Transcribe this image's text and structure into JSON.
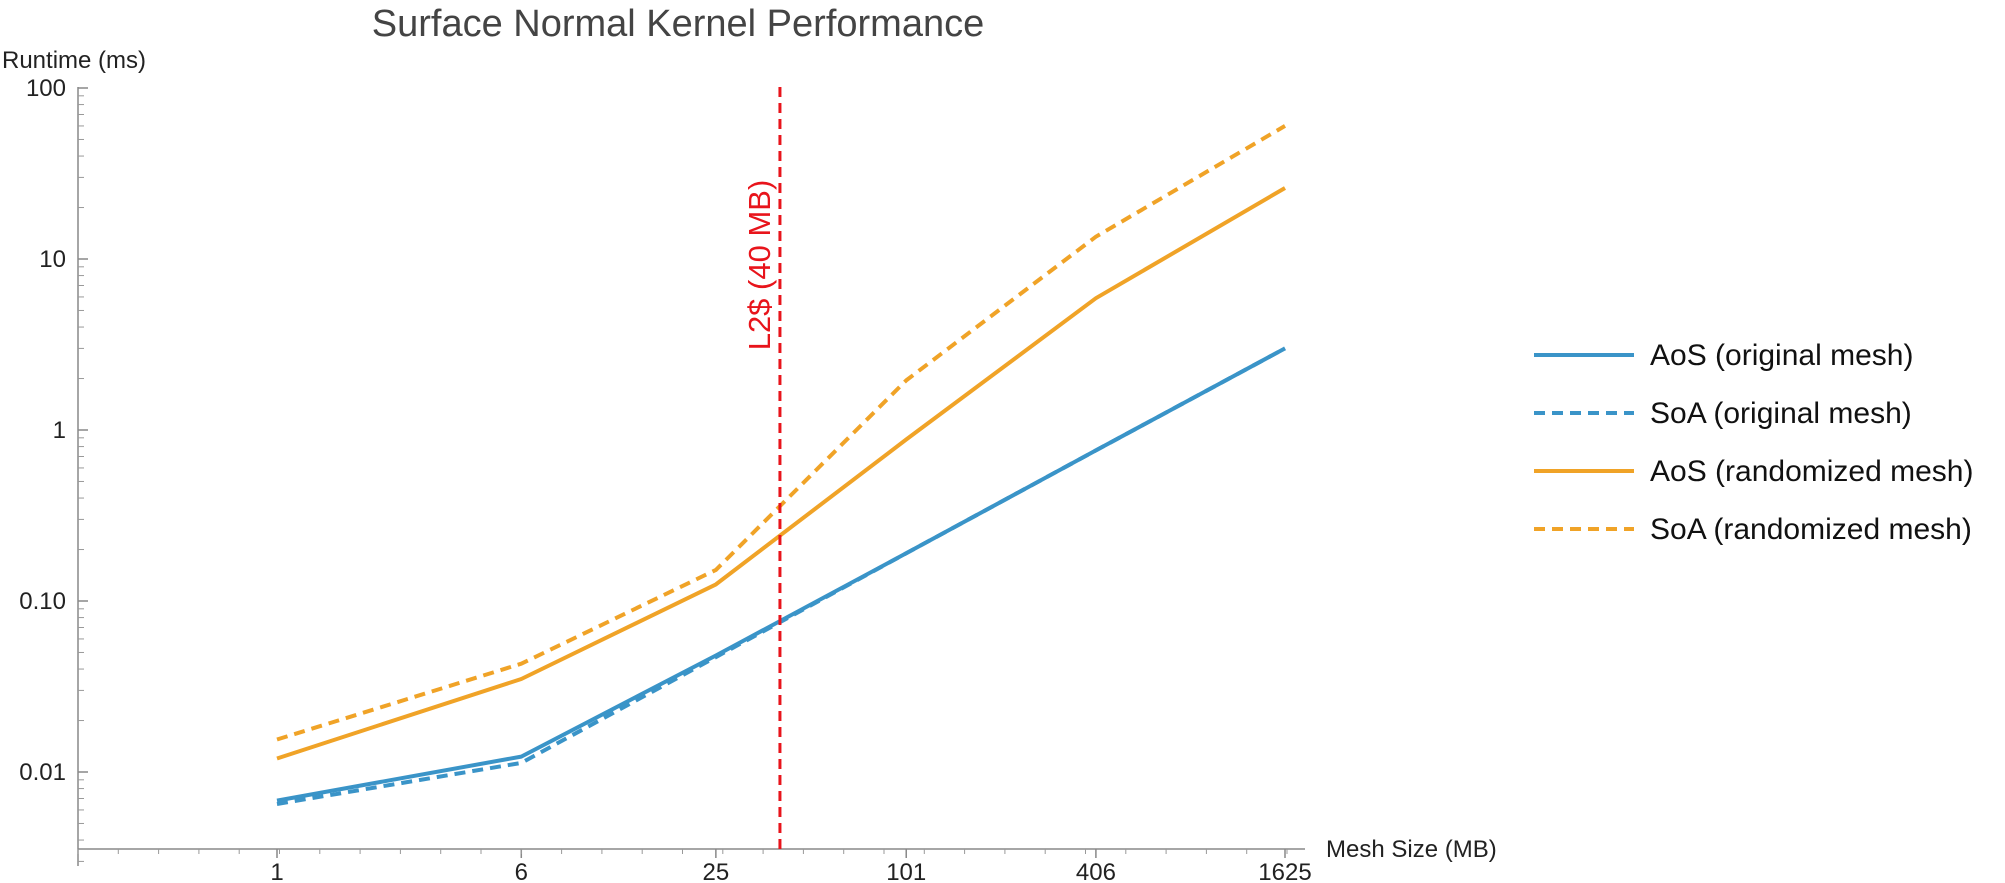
{
  "chart_data": {
    "type": "line",
    "title": "Surface Normal Kernel Performance",
    "xlabel": "Mesh Size (MB)",
    "ylabel": "Runtime (ms)",
    "x_scale": "log",
    "y_scale": "log",
    "categories": [
      "1",
      "6",
      "25",
      "101",
      "406",
      "1625"
    ],
    "x": [
      1,
      6,
      25,
      101,
      406,
      1625
    ],
    "y_ticks": [
      {
        "value": 0.01,
        "label": "0.01"
      },
      {
        "value": 0.1,
        "label": "0.10"
      },
      {
        "value": 1,
        "label": "1"
      },
      {
        "value": 10,
        "label": "10"
      },
      {
        "value": 100,
        "label": "100"
      }
    ],
    "ylim": [
      0.0037,
      100
    ],
    "series": [
      {
        "name": "AoS (original mesh)",
        "color": "#3a94c8",
        "dash": "solid",
        "values": [
          0.0068,
          0.0123,
          0.048,
          0.19,
          0.76,
          3.0
        ]
      },
      {
        "name": "SoA (original mesh)",
        "color": "#3a94c8",
        "dash": "dashed",
        "values": [
          0.0065,
          0.0113,
          0.047,
          0.19,
          0.76,
          3.0
        ]
      },
      {
        "name": "AoS (randomized mesh)",
        "color": "#f0a327",
        "dash": "solid",
        "values": [
          0.012,
          0.035,
          0.125,
          0.88,
          5.9,
          26
        ]
      },
      {
        "name": "SoA (randomized mesh)",
        "color": "#f0a327",
        "dash": "dashed",
        "values": [
          0.0155,
          0.043,
          0.152,
          1.95,
          13.5,
          60
        ]
      }
    ],
    "annotations": [
      {
        "type": "vline",
        "x": 40,
        "label": "L2$ (40 MB)",
        "color": "#e8141b",
        "dash": "dashed"
      }
    ],
    "grid": false,
    "legend": "right"
  }
}
